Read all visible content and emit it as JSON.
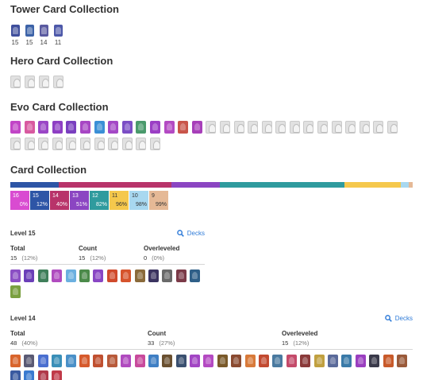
{
  "tower": {
    "title": "Tower Card Collection",
    "cards": [
      {
        "icon": "tower-princess-icon",
        "level": "15",
        "color": "#3f4f9c"
      },
      {
        "icon": "tower-cannoneer-icon",
        "level": "15",
        "color": "#3d63a8"
      },
      {
        "icon": "tower-duchess-icon",
        "level": "14",
        "color": "#5a5aa0"
      },
      {
        "icon": "tower-royal-chef-icon",
        "level": "11",
        "color": "#4d58a9"
      }
    ]
  },
  "hero": {
    "title": "Hero Card Collection",
    "count": 4
  },
  "evo": {
    "title": "Evo Card Collection",
    "row1_colors": [
      "#c145c7",
      "#d85aa0",
      "#9a46c6",
      "#8e3fc4",
      "#7a3fbf",
      "#a746c4",
      "#3b8fd6",
      "#a448c6",
      "#7b4ec5",
      "#4a9a6c",
      "#9b3fc5",
      "#b34ac3",
      "#c9554a",
      "#a73fb9"
    ],
    "row1_gray": 14,
    "row2_gray": 11
  },
  "collection": {
    "title": "Card Collection",
    "bar": [
      {
        "color": "#2d55a6",
        "weight": 12
      },
      {
        "color": "#b8336a",
        "weight": 28
      },
      {
        "color": "#8b45c2",
        "weight": 12
      },
      {
        "color": "#2f9b9e",
        "weight": 31
      },
      {
        "color": "#f5c84c",
        "weight": 14
      },
      {
        "color": "#a8d8f0",
        "weight": 2
      },
      {
        "color": "#e5b996",
        "weight": 1
      }
    ],
    "boxes": [
      {
        "level": "16",
        "pct": "0%",
        "bg": "#d94bd1",
        "fg": "#ffffff"
      },
      {
        "level": "15",
        "pct": "12%",
        "bg": "#2d55a6",
        "fg": "#ffffff"
      },
      {
        "level": "14",
        "pct": "40%",
        "bg": "#b8336a",
        "fg": "#ffffff"
      },
      {
        "level": "13",
        "pct": "51%",
        "bg": "#8b45c2",
        "fg": "#ffffff"
      },
      {
        "level": "12",
        "pct": "82%",
        "bg": "#2f9b9e",
        "fg": "#ffffff"
      },
      {
        "level": "11",
        "pct": "96%",
        "bg": "#f5c84c",
        "fg": "#333333"
      },
      {
        "level": "10",
        "pct": "98%",
        "bg": "#a8d8f0",
        "fg": "#333333"
      },
      {
        "level": "9",
        "pct": "99%",
        "bg": "#e5b996",
        "fg": "#333333"
      }
    ]
  },
  "level15": {
    "title": "Level 15",
    "decks": "Decks",
    "total_label": "Total",
    "total_value": "15",
    "total_pct": "(12%)",
    "count_label": "Count",
    "count_value": "15",
    "count_pct": "(12%)",
    "over_label": "Overleveled",
    "over_value": "0",
    "over_pct": "(0%)",
    "card_colors": [
      "#8b4fc4",
      "#6b3fb8",
      "#3f7f5a",
      "#b04bbf",
      "#6bb0e0",
      "#4b8a4a",
      "#8946c4",
      "#d04a2c",
      "#d6542c",
      "#8a6a3a",
      "#3b3360",
      "#6a6a6a",
      "#7b3a48",
      "#2f5f88",
      "#7aa040"
    ]
  },
  "level14": {
    "title": "Level 14",
    "decks": "Decks",
    "total_label": "Total",
    "total_value": "48",
    "total_pct": "(40%)",
    "count_label": "Count",
    "count_value": "33",
    "count_pct": "(27%)",
    "over_label": "Overleveled",
    "over_value": "15",
    "over_pct": "(12%)",
    "card_colors": [
      "#d8642c",
      "#5a5a74",
      "#4a6fd0",
      "#3a8fb8",
      "#4a90c8",
      "#d65a2c",
      "#c05030",
      "#b85a3a",
      "#b04bbf",
      "#c84a9c",
      "#3f7fc4",
      "#6a5030",
      "#3a5070",
      "#a246c4",
      "#b44ac2",
      "#7a5a2a",
      "#8a4a30",
      "#d87a3a",
      "#c24a30",
      "#4a7aa0",
      "#c44a6a",
      "#8a3a3a",
      "#c0a040",
      "#5a6a9a",
      "#3a7aa8",
      "#9a3fc0",
      "#3a3a4a",
      "#c85a2a",
      "#9a5a3a",
      "#3a5aa0",
      "#3a7ad0",
      "#b03a4a",
      "#c03a48"
    ]
  }
}
